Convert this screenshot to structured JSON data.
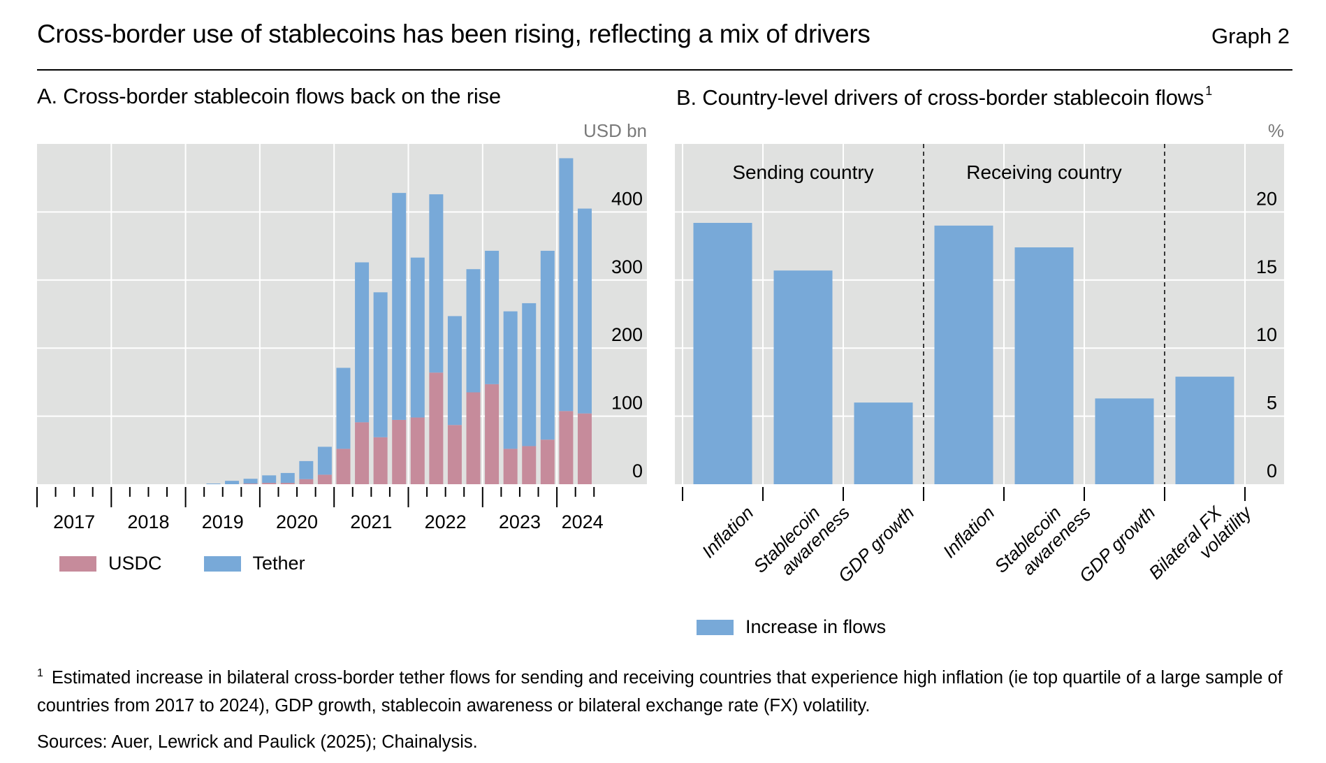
{
  "header": {
    "title": "Cross-border use of stablecoins has been rising, reflecting a mix of drivers",
    "graph_label": "Graph 2"
  },
  "colors": {
    "usdc": "#c68b9b",
    "tether": "#78a9d8",
    "increase": "#78a9d8",
    "plot_bg": "#e0e1e0",
    "grid": "#ffffff"
  },
  "chart_data": [
    {
      "id": "A",
      "type": "bar",
      "stacked": true,
      "title": "A. Cross-border stablecoin flows back on the rise",
      "ylabel": "USD bn",
      "ylim": [
        0,
        500
      ],
      "yticks": [
        0,
        100,
        200,
        300,
        400
      ],
      "y_axis_side": "right",
      "grid": true,
      "x_start": "2017Q1",
      "x_end": "2024Q2",
      "year_labels": [
        "2017",
        "2018",
        "2019",
        "2020",
        "2021",
        "2022",
        "2023",
        "2024"
      ],
      "categories": [
        "2017Q1",
        "2017Q2",
        "2017Q3",
        "2017Q4",
        "2018Q1",
        "2018Q2",
        "2018Q3",
        "2018Q4",
        "2019Q1",
        "2019Q2",
        "2019Q3",
        "2019Q4",
        "2020Q1",
        "2020Q2",
        "2020Q3",
        "2020Q4",
        "2021Q1",
        "2021Q2",
        "2021Q3",
        "2021Q4",
        "2022Q1",
        "2022Q2",
        "2022Q3",
        "2022Q4",
        "2023Q1",
        "2023Q2",
        "2023Q3",
        "2023Q4",
        "2024Q1",
        "2024Q2"
      ],
      "series": [
        {
          "name": "USDC",
          "color_key": "usdc",
          "values": [
            0,
            0,
            0,
            0,
            0,
            0,
            0,
            0,
            0,
            0,
            0,
            1,
            2,
            2,
            7.5,
            14,
            52,
            91,
            69,
            94.5,
            98,
            164,
            87,
            135,
            147,
            52,
            56,
            65.5,
            107.5,
            104
          ]
        },
        {
          "name": "Tether",
          "color_key": "tether",
          "values": [
            0,
            0,
            0,
            0,
            0,
            0,
            0,
            0,
            0,
            1,
            5,
            7,
            11,
            14.5,
            26.5,
            41,
            119,
            235,
            213,
            333.5,
            235,
            262,
            160,
            181,
            196,
            202,
            210,
            277.5,
            371.5,
            301
          ]
        }
      ],
      "totals": [
        0,
        0,
        0,
        0,
        0,
        0,
        0,
        0,
        0,
        1,
        5,
        8,
        13,
        16.5,
        34,
        55,
        171,
        326,
        282,
        428,
        333,
        426,
        247,
        316,
        343,
        254,
        266,
        343,
        479,
        405
      ],
      "legend": [
        "USDC",
        "Tether"
      ],
      "legend_position": "bottom-left"
    },
    {
      "id": "B",
      "type": "bar",
      "title": "B. Country-level drivers of cross-border stablecoin flows",
      "title_footnote_mark": "1",
      "ylabel": "%",
      "ylim": [
        0,
        25
      ],
      "yticks": [
        0,
        5,
        10,
        15,
        20
      ],
      "y_axis_side": "right",
      "grid": true,
      "groups": [
        {
          "label": "Sending country",
          "start": 0,
          "end": 2
        },
        {
          "label": "Receiving country",
          "start": 3,
          "end": 5
        },
        {
          "label": "",
          "start": 6,
          "end": 6
        }
      ],
      "categories": [
        [
          "Inflation"
        ],
        [
          "Stablecoin",
          "awareness"
        ],
        [
          "GDP growth"
        ],
        [
          "Inflation"
        ],
        [
          "Stablecoin",
          "awareness"
        ],
        [
          "GDP growth"
        ],
        [
          "Bilateral FX",
          "volatility"
        ]
      ],
      "series": [
        {
          "name": "Increase in flows",
          "color_key": "increase",
          "values": [
            19.2,
            15.7,
            6.0,
            19.0,
            17.4,
            6.3,
            7.9
          ]
        }
      ],
      "legend": [
        "Increase in flows"
      ],
      "legend_position": "bottom"
    }
  ],
  "panelA": {
    "title": "A. Cross-border stablecoin flows back on the rise",
    "unit": "USD bn",
    "legend": {
      "usdc": "USDC",
      "tether": "Tether"
    }
  },
  "panelB": {
    "title": "B. Country-level drivers of cross-border stablecoin flows",
    "title_sup": "1",
    "unit": "%",
    "legend": {
      "increase": "Increase in flows"
    }
  },
  "footnote": {
    "mark": "1",
    "text": "Estimated increase in bilateral cross-border tether flows for sending and receiving countries that experience high inflation (ie top quartile of a large sample of countries from 2017 to 2024), GDP growth, stablecoin awareness or bilateral exchange rate (FX) volatility."
  },
  "sources": "Sources: Auer, Lewrick and Paulick (2025); Chainalysis."
}
